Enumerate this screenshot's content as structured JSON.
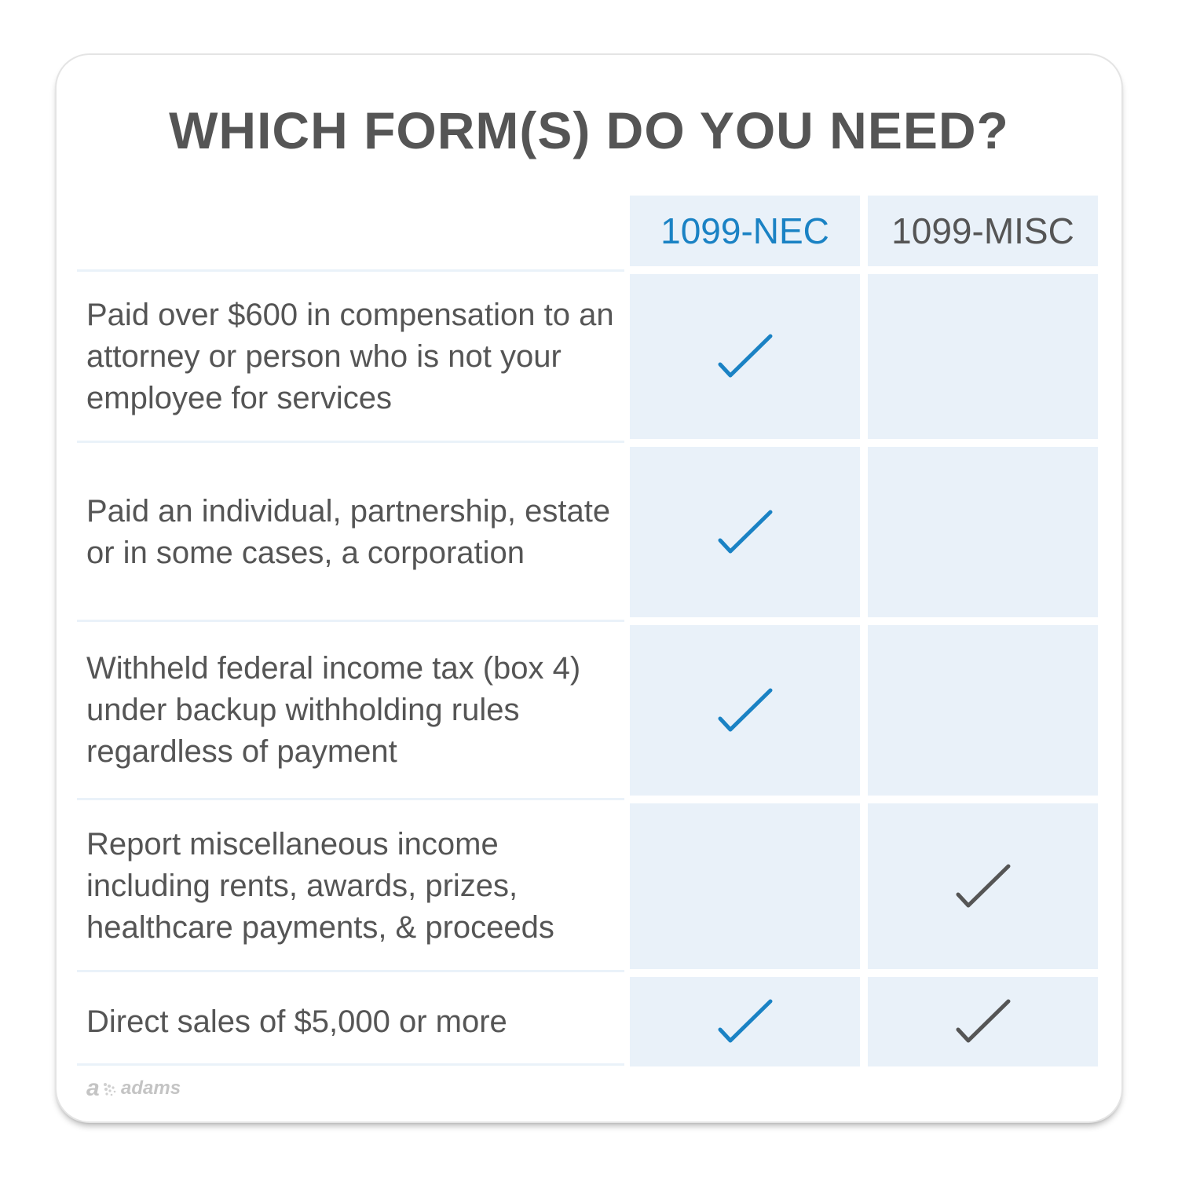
{
  "title": "WHICH FORM(S) DO YOU NEED?",
  "columns": [
    {
      "label": "1099-NEC",
      "color": "#1a82c4"
    },
    {
      "label": "1099-MISC",
      "color": "#555555"
    }
  ],
  "rows": [
    {
      "label": "Paid over $600 in compensation to an attorney or person who is not your employee for services",
      "nec": true,
      "misc": false
    },
    {
      "label": "Paid an individual, partnership, estate or in some cases, a corporation",
      "nec": true,
      "misc": false
    },
    {
      "label": "Withheld federal income tax (box 4) under backup withholding rules regardless of payment",
      "nec": true,
      "misc": false
    },
    {
      "label": "Report miscellaneous income including rents, awards, prizes, healthcare payments, & proceeds",
      "nec": false,
      "misc": true
    },
    {
      "label": "Direct sales of $5,000 or more",
      "nec": true,
      "misc": true
    }
  ],
  "logo": {
    "text": "adams"
  },
  "colors": {
    "cell_bg": "#e9f1f9",
    "text": "#555555",
    "accent": "#1a82c4"
  },
  "icons": {
    "check": "checkmark-icon"
  }
}
